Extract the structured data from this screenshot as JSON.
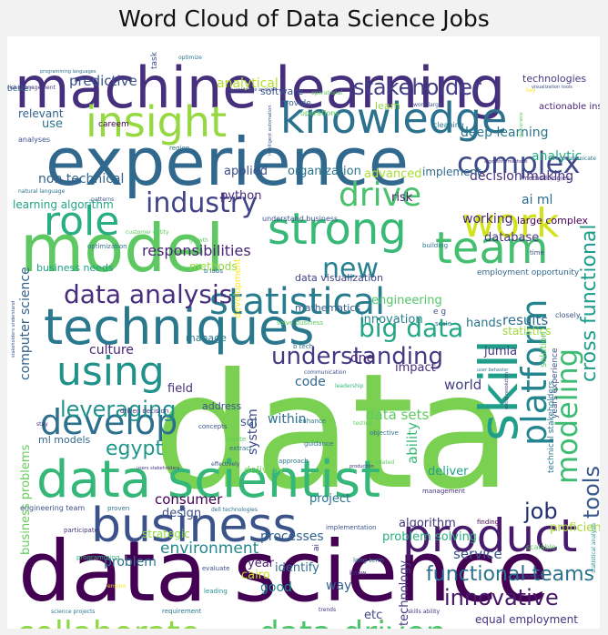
{
  "title": "Word Cloud of Data Science Jobs",
  "colors": {
    "background": "#ffffff",
    "figure_background": "#f2f2f2",
    "palette": [
      "#440154",
      "#3b528b",
      "#21918c",
      "#5ec962",
      "#95d840",
      "#fde725"
    ]
  },
  "words": [
    {
      "text": "data",
      "color": "#7ad151"
    },
    {
      "text": "data science",
      "color": "#440154"
    },
    {
      "text": "machine learning",
      "color": "#46307e"
    },
    {
      "text": "experience",
      "color": "#31688e"
    },
    {
      "text": "model",
      "color": "#5ec962"
    },
    {
      "text": "data scientist",
      "color": "#35b779"
    },
    {
      "text": "techniques",
      "color": "#2a788e"
    },
    {
      "text": "business",
      "color": "#3b528b"
    },
    {
      "text": "insight",
      "color": "#95d840"
    },
    {
      "text": "knowledge",
      "color": "#2c728e"
    },
    {
      "text": "skill",
      "color": "#1f9e89"
    },
    {
      "text": "product",
      "color": "#481a6c"
    },
    {
      "text": "strong",
      "color": "#38b977"
    },
    {
      "text": "statistical",
      "color": "#287c8e"
    },
    {
      "text": "team",
      "color": "#44bf70"
    },
    {
      "text": "work",
      "color": "#d2e21b"
    },
    {
      "text": "role",
      "color": "#29af7f"
    },
    {
      "text": "using",
      "color": "#21918c"
    },
    {
      "text": "drive",
      "color": "#4ac16d"
    },
    {
      "text": "platform",
      "color": "#25858e"
    },
    {
      "text": "develop",
      "color": "#2d708e"
    },
    {
      "text": "industry",
      "color": "#414487"
    },
    {
      "text": "complex",
      "color": "#3e4a89"
    },
    {
      "text": "new",
      "color": "#26828e"
    },
    {
      "text": "modeling",
      "color": "#3fbc73"
    },
    {
      "text": "collaborate",
      "color": "#8fd744"
    },
    {
      "text": "data driven",
      "color": "#4ec36b"
    },
    {
      "text": "big data",
      "color": "#22a785"
    },
    {
      "text": "data analysis",
      "color": "#472d7b"
    },
    {
      "text": "understanding",
      "color": "#443983"
    },
    {
      "text": "leveraging",
      "color": "#20928c"
    },
    {
      "text": "cross functional",
      "color": "#1e9b8a"
    },
    {
      "text": "functional teams",
      "color": "#2c718e"
    },
    {
      "text": "stakeholder",
      "color": "#433e85"
    },
    {
      "text": "tools",
      "color": "#38598c"
    },
    {
      "text": "egypt",
      "color": "#1f968b"
    },
    {
      "text": "job",
      "color": "#1f2f70"
    },
    {
      "text": "innovative",
      "color": "#481769"
    },
    {
      "text": "responsibilities",
      "color": "#482475"
    },
    {
      "text": "environment",
      "color": "#24868e"
    },
    {
      "text": "predictive",
      "color": "#3b528b"
    },
    {
      "text": "analytical",
      "color": "#b5de2b"
    },
    {
      "text": "non technical",
      "color": "#33638d"
    },
    {
      "text": "deep learning",
      "color": "#2a778e"
    },
    {
      "text": "decision making",
      "color": "#46327e"
    },
    {
      "text": "analytic",
      "color": "#25ab82"
    },
    {
      "text": "ai ml",
      "color": "#2e6e8e"
    },
    {
      "text": "working",
      "color": "#482878"
    },
    {
      "text": "database",
      "color": "#453781"
    },
    {
      "text": "engineering",
      "color": "#52c569"
    },
    {
      "text": "innovation",
      "color": "#26818e"
    },
    {
      "text": "results",
      "color": "#2f6b8e"
    },
    {
      "text": "culture",
      "color": "#482576"
    },
    {
      "text": "consumer",
      "color": "#440154"
    },
    {
      "text": "system",
      "color": "#3e4c8a"
    },
    {
      "text": "data sets",
      "color": "#5ec962"
    },
    {
      "text": "ability",
      "color": "#38b977"
    },
    {
      "text": "world",
      "color": "#424086"
    },
    {
      "text": "computer science",
      "color": "#33638d"
    },
    {
      "text": "business problems",
      "color": "#67cc5c"
    },
    {
      "text": "problem",
      "color": "#2d718e"
    },
    {
      "text": "service",
      "color": "#3a548c"
    },
    {
      "text": "algorithm",
      "color": "#46337f"
    },
    {
      "text": "problem solving",
      "color": "#29af7f"
    },
    {
      "text": "technology",
      "color": "#453882"
    },
    {
      "text": "way",
      "color": "#355f8d"
    },
    {
      "text": "processes",
      "color": "#33638d"
    },
    {
      "text": "design",
      "color": "#3c4f8a"
    },
    {
      "text": "deliver",
      "color": "#1fa187"
    },
    {
      "text": "project",
      "color": "#2c728e"
    },
    {
      "text": "within",
      "color": "#2e6f8e"
    },
    {
      "text": "code",
      "color": "#31678e"
    },
    {
      "text": "field",
      "color": "#472e7c"
    },
    {
      "text": "sql",
      "color": "#3a538b"
    },
    {
      "text": "hands",
      "color": "#2b758e"
    },
    {
      "text": "statistics",
      "color": "#a0da39"
    },
    {
      "text": "jumia",
      "color": "#453581"
    },
    {
      "text": "one",
      "color": "#482677"
    },
    {
      "text": "impact",
      "color": "#46337e"
    },
    {
      "text": "methods",
      "color": "#95d840"
    },
    {
      "text": "python",
      "color": "#482878"
    },
    {
      "text": "advanced",
      "color": "#addc30"
    },
    {
      "text": "organization",
      "color": "#2a768e"
    },
    {
      "text": "implement",
      "color": "#2f6c8e"
    },
    {
      "text": "applied",
      "color": "#3d4e8a"
    },
    {
      "text": "risk",
      "color": "#482071"
    },
    {
      "text": "year",
      "color": "#481f70"
    },
    {
      "text": "good",
      "color": "#23898e"
    },
    {
      "text": "cairo",
      "color": "#c2df23"
    },
    {
      "text": "etc",
      "color": "#3f4788"
    },
    {
      "text": "identify",
      "color": "#2f6b8e"
    },
    {
      "text": "strategic",
      "color": "#8fd744"
    },
    {
      "text": "delivery",
      "color": "#7ad151"
    },
    {
      "text": "proficiency",
      "color": "#a8db34"
    },
    {
      "text": "learning algorithm",
      "color": "#21a685"
    },
    {
      "text": "business needs",
      "color": "#1fa088"
    },
    {
      "text": "mathematics",
      "color": "#355f8d"
    },
    {
      "text": "data visualization",
      "color": "#414487"
    },
    {
      "text": "manage",
      "color": "#2a788e"
    },
    {
      "text": "address",
      "color": "#3b528b"
    },
    {
      "text": "ml models",
      "color": "#31688e"
    },
    {
      "text": "equal employment",
      "color": "#46327e"
    },
    {
      "text": "use",
      "color": "#2c728e"
    },
    {
      "text": "relevant",
      "color": "#33638d"
    },
    {
      "text": "large complex",
      "color": "#440154"
    },
    {
      "text": "actionable insights",
      "color": "#482475"
    },
    {
      "text": "technologies",
      "color": "#453781"
    },
    {
      "text": "software",
      "color": "#3b528b"
    },
    {
      "text": "learn",
      "color": "#95d840"
    },
    {
      "text": "task",
      "color": "#3b528b"
    },
    {
      "text": "better",
      "color": "#2c728e"
    },
    {
      "text": "provide",
      "color": "#33638d"
    },
    {
      "text": "operations",
      "color": "#5ec962"
    },
    {
      "text": "careem",
      "color": "#440154"
    },
    {
      "text": "cleaning",
      "color": "#2a788e"
    },
    {
      "text": "analyses",
      "color": "#3b528b"
    },
    {
      "text": "region",
      "color": "#2c728e"
    },
    {
      "text": "employment opportunity",
      "color": "#31688e"
    },
    {
      "text": "understand business",
      "color": "#3b528b"
    },
    {
      "text": "methodologies",
      "color": "#46327e"
    },
    {
      "text": "e g",
      "color": "#3b528b"
    },
    {
      "text": "scale",
      "color": "#2a788e"
    },
    {
      "text": "solve business",
      "color": "#5ec962"
    },
    {
      "text": "development",
      "color": "#fde725"
    },
    {
      "text": "optimization",
      "color": "#2c728e"
    },
    {
      "text": "growth",
      "color": "#5ec962"
    },
    {
      "text": "building",
      "color": "#2a788e"
    },
    {
      "text": "time",
      "color": "#3b528b"
    },
    {
      "text": "b tech",
      "color": "#2c728e"
    },
    {
      "text": "communication",
      "color": "#3b528b"
    },
    {
      "text": "leadership",
      "color": "#35b779"
    },
    {
      "text": "years experience",
      "color": "#3b528b"
    },
    {
      "text": "technical stakeholders",
      "color": "#2a788e"
    },
    {
      "text": "solution",
      "color": "#5ec962"
    },
    {
      "text": "finding",
      "color": "#440154"
    },
    {
      "text": "management",
      "color": "#46327e"
    },
    {
      "text": "scalable",
      "color": "#5ec962"
    },
    {
      "text": "long term",
      "color": "#2c728e"
    },
    {
      "text": "know",
      "color": "#46327e"
    },
    {
      "text": "dynamic",
      "color": "#414487"
    },
    {
      "text": "requirement",
      "color": "#2a788e"
    },
    {
      "text": "evaluate",
      "color": "#3b528b"
    },
    {
      "text": "programming",
      "color": "#35b779"
    },
    {
      "text": "leading",
      "color": "#21918c"
    },
    {
      "text": "participate",
      "color": "#46327e"
    },
    {
      "text": "proven",
      "color": "#2c728e"
    },
    {
      "text": "engineering team",
      "color": "#3b528b"
    },
    {
      "text": "skills ability",
      "color": "#46327e"
    },
    {
      "text": "implementation",
      "color": "#3b528b"
    },
    {
      "text": "guidance",
      "color": "#2c728e"
    },
    {
      "text": "extract",
      "color": "#2c728e"
    },
    {
      "text": "create",
      "color": "#5ec962"
    },
    {
      "text": "approach",
      "color": "#2a788e"
    },
    {
      "text": "driven decision",
      "color": "#46327e"
    },
    {
      "text": "concepts",
      "color": "#3b528b"
    },
    {
      "text": "objective",
      "color": "#2c728e"
    },
    {
      "text": "enhance",
      "color": "#2a788e"
    },
    {
      "text": "customer entity",
      "color": "#5ec962"
    },
    {
      "text": "natural language",
      "color": "#2c728e"
    },
    {
      "text": "patterns",
      "color": "#3b528b"
    },
    {
      "text": "effectively",
      "color": "#3b528b"
    },
    {
      "text": "users stakeholders",
      "color": "#46327e"
    },
    {
      "text": "related",
      "color": "#5ec962"
    },
    {
      "text": "quantitative analysis",
      "color": "#3b528b"
    },
    {
      "text": "risk management",
      "color": "#46327e"
    },
    {
      "text": "work large",
      "color": "#3b528b"
    },
    {
      "text": "programming languages",
      "color": "#2c728e"
    },
    {
      "text": "optimize",
      "color": "#2a788e"
    },
    {
      "text": "visualization tools",
      "color": "#3b528b"
    },
    {
      "text": "operational",
      "color": "#5ec962"
    },
    {
      "text": "algorithm methods",
      "color": "#46327e"
    },
    {
      "text": "communicate",
      "color": "#2c728e"
    },
    {
      "text": "closely",
      "color": "#3b528b"
    },
    {
      "text": "user behavior",
      "color": "#2c728e"
    },
    {
      "text": "testing",
      "color": "#5ec962"
    },
    {
      "text": "production",
      "color": "#46327e"
    },
    {
      "text": "science projects",
      "color": "#2a788e"
    },
    {
      "text": "ensure",
      "color": "#fde725"
    },
    {
      "text": "trends",
      "color": "#46327e"
    },
    {
      "text": "discrimination harassment",
      "color": "#fde725"
    },
    {
      "text": "deliverable",
      "color": "#5ec962"
    },
    {
      "text": "stakeholders understand",
      "color": "#3b528b"
    },
    {
      "text": "b labs",
      "color": "#2c728e"
    },
    {
      "text": "stay",
      "color": "#46327e"
    },
    {
      "text": "dell technologies",
      "color": "#2c728e"
    },
    {
      "text": "intelligent automation",
      "color": "#3b528b"
    },
    {
      "text": "entity resolution",
      "color": "#46327e"
    },
    {
      "text": "statistical analysis",
      "color": "#21918c"
    },
    {
      "text": "key",
      "color": "#fde725"
    },
    {
      "text": "ai",
      "color": "#46327e"
    }
  ]
}
